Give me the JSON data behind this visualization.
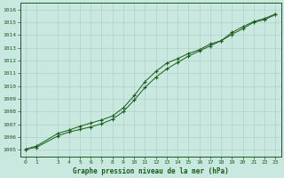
{
  "title": "Graphe pression niveau de la mer (hPa)",
  "background_color": "#c8e8e0",
  "line_color": "#1a5c1a",
  "grid_color": "#b0d0c8",
  "ylim": [
    1004.5,
    1016.5
  ],
  "xlim": [
    -0.5,
    23.5
  ],
  "yticks": [
    1005,
    1006,
    1007,
    1008,
    1009,
    1010,
    1011,
    1012,
    1013,
    1014,
    1015,
    1016
  ],
  "xticks": [
    0,
    1,
    3,
    4,
    5,
    6,
    7,
    8,
    9,
    10,
    11,
    12,
    13,
    14,
    15,
    16,
    17,
    18,
    19,
    20,
    21,
    22,
    23
  ],
  "line1_x": [
    0,
    1,
    3,
    4,
    5,
    6,
    7,
    8,
    9,
    10,
    11,
    12,
    13,
    14,
    15,
    16,
    17,
    18,
    19,
    20,
    21,
    22,
    23
  ],
  "line1_y": [
    1005.05,
    1005.3,
    1006.3,
    1006.55,
    1006.85,
    1007.1,
    1007.35,
    1007.65,
    1008.3,
    1009.25,
    1010.35,
    1011.15,
    1011.8,
    1012.15,
    1012.55,
    1012.85,
    1013.3,
    1013.55,
    1014.2,
    1014.65,
    1015.05,
    1015.3,
    1015.65
  ],
  "line2_x": [
    0,
    1,
    3,
    4,
    5,
    6,
    7,
    8,
    9,
    10,
    11,
    12,
    13,
    14,
    15,
    16,
    17,
    18,
    19,
    20,
    21,
    22,
    23
  ],
  "line2_y": [
    1005.05,
    1005.2,
    1006.1,
    1006.4,
    1006.6,
    1006.8,
    1007.05,
    1007.4,
    1008.0,
    1008.9,
    1009.9,
    1010.7,
    1011.35,
    1011.85,
    1012.35,
    1012.75,
    1013.15,
    1013.55,
    1014.05,
    1014.5,
    1015.0,
    1015.2,
    1015.6
  ],
  "figsize": [
    3.2,
    2.0
  ],
  "dpi": 100
}
